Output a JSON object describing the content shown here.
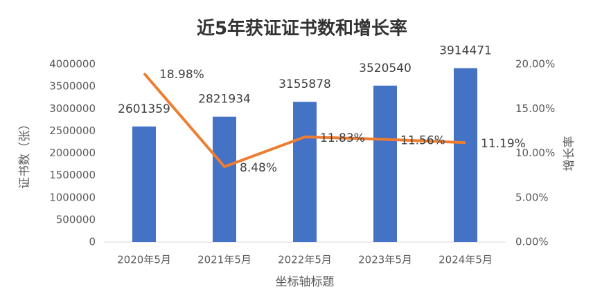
{
  "chart_data": {
    "type": "bar-line",
    "title": "近5年获证证书数和增长率",
    "categories": [
      "2020年5月",
      "2021年5月",
      "2022年5月",
      "2023年5月",
      "2024年5月"
    ],
    "series": [
      {
        "type": "bar",
        "color": "#4472c4",
        "values": [
          2601359,
          2821934,
          3155878,
          3520540,
          3914471
        ]
      },
      {
        "type": "line",
        "axis": "y2",
        "color": "#ed7d31",
        "values": [
          18.98,
          8.48,
          11.83,
          11.56,
          11.19
        ],
        "value_labels": [
          "18.98%",
          "8.48%",
          "11.83%",
          "11.56%",
          "11.19%"
        ]
      }
    ],
    "ylabel": "证书数（张）",
    "y2label": "增长率",
    "xlabel": "坐标轴标题",
    "ylim": [
      0,
      4000000
    ],
    "yticks": [
      0,
      500000,
      1000000,
      1500000,
      2000000,
      2500000,
      3000000,
      3500000,
      4000000
    ],
    "y2lim": [
      0,
      20
    ],
    "y2ticks": [
      {
        "value": 0,
        "label": "0.00%"
      },
      {
        "value": 5,
        "label": "5.00%"
      },
      {
        "value": 10,
        "label": "10.00%"
      },
      {
        "value": 15,
        "label": "15.00%"
      },
      {
        "value": 20,
        "label": "20.00%"
      }
    ],
    "grid": false
  }
}
